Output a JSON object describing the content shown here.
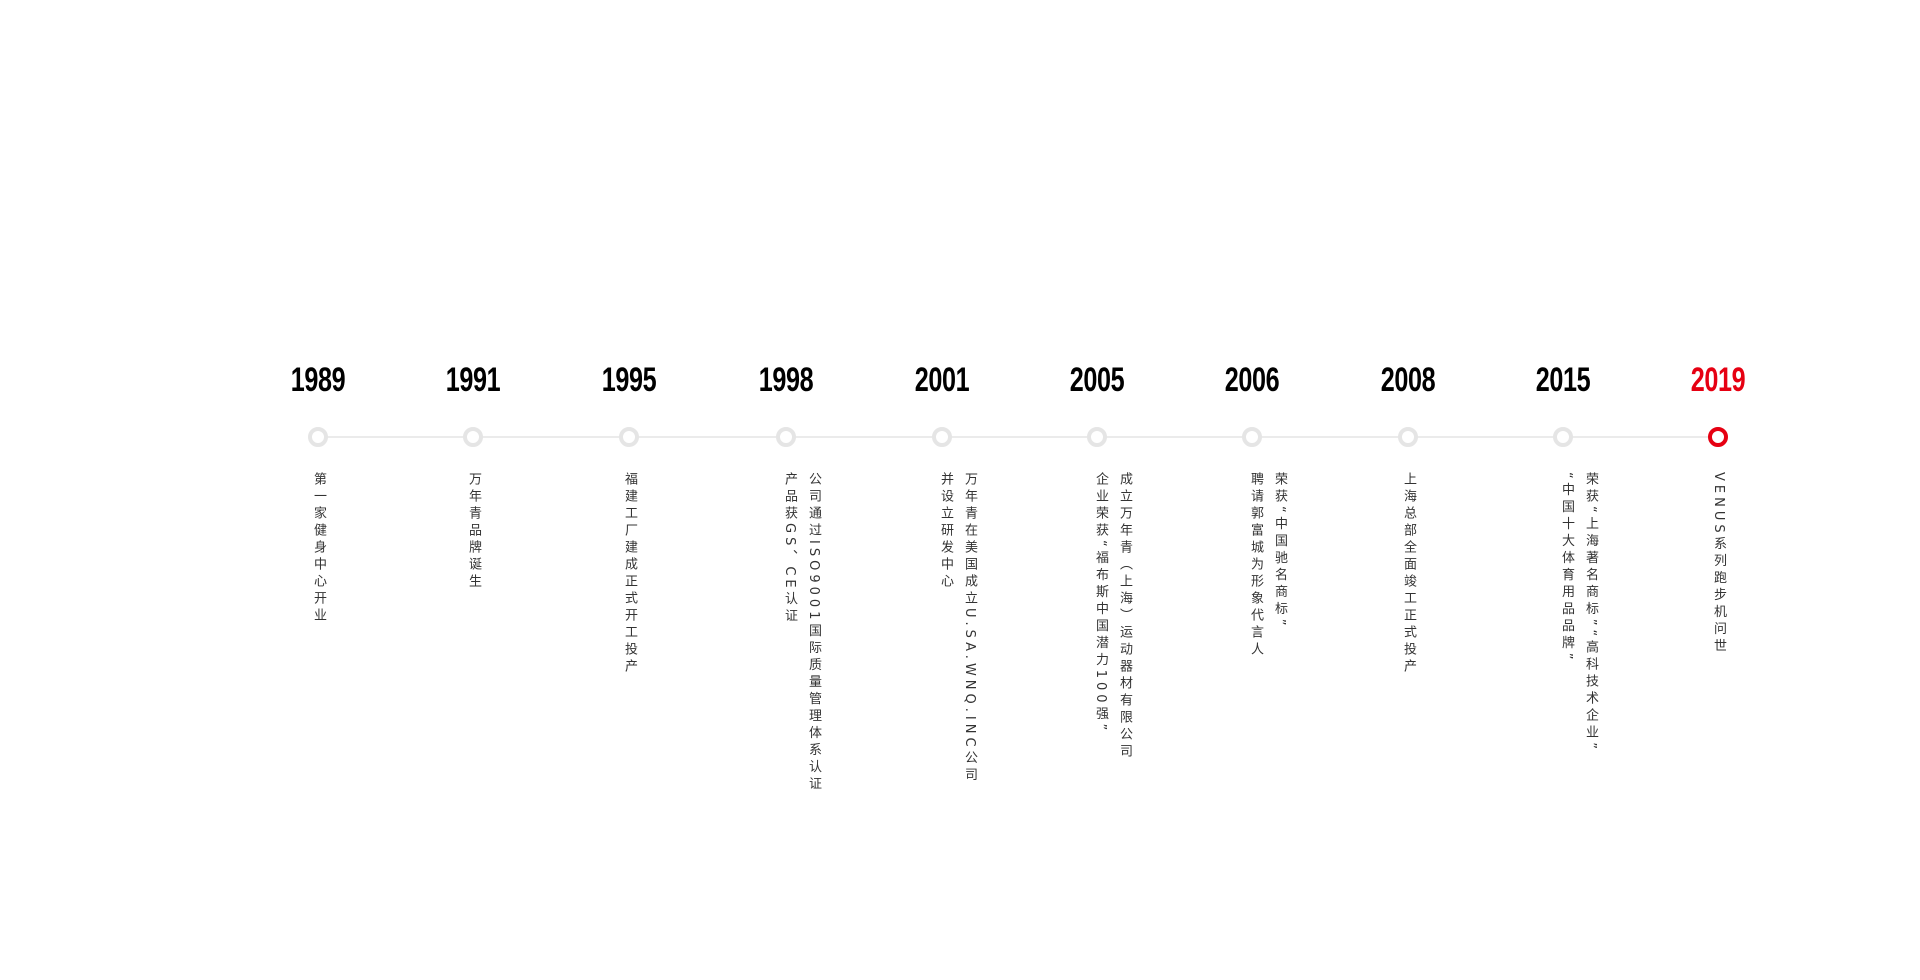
{
  "colors": {
    "accent": "#e60012",
    "inactive_dot": "#e5e5e5",
    "track": "#ebebeb",
    "text": "#333333"
  },
  "timeline": [
    {
      "year": "1989",
      "lines": [
        "第一家健身中心开业"
      ]
    },
    {
      "year": "1991",
      "lines": [
        "万年青品牌诞生"
      ]
    },
    {
      "year": "1995",
      "lines": [
        "福建工厂建成正式开工投产"
      ]
    },
    {
      "year": "1998",
      "lines": [
        "公司通过ISO9001国际质量管理体系认证",
        "产品获GS、CE认证"
      ]
    },
    {
      "year": "2001",
      "lines": [
        "万年青在美国成立U.SA.WNQ.INC公司",
        "并设立研发中心"
      ]
    },
    {
      "year": "2005",
      "lines": [
        "成立万年青（上海）运动器材有限公司",
        "企业荣获“福布斯中国潜力100强”"
      ]
    },
    {
      "year": "2006",
      "lines": [
        "荣获“中国驰名商标”",
        "聘请郭富城为形象代言人"
      ]
    },
    {
      "year": "2008",
      "lines": [
        "上海总部全面竣工正式投产"
      ]
    },
    {
      "year": "2015",
      "lines": [
        "荣获“上海著名商标”“高科技术企业”",
        "“中国十大体育用品品牌”"
      ]
    },
    {
      "year": "2019",
      "lines": [
        "VENUS系列跑步机问世"
      ],
      "active": true
    }
  ]
}
